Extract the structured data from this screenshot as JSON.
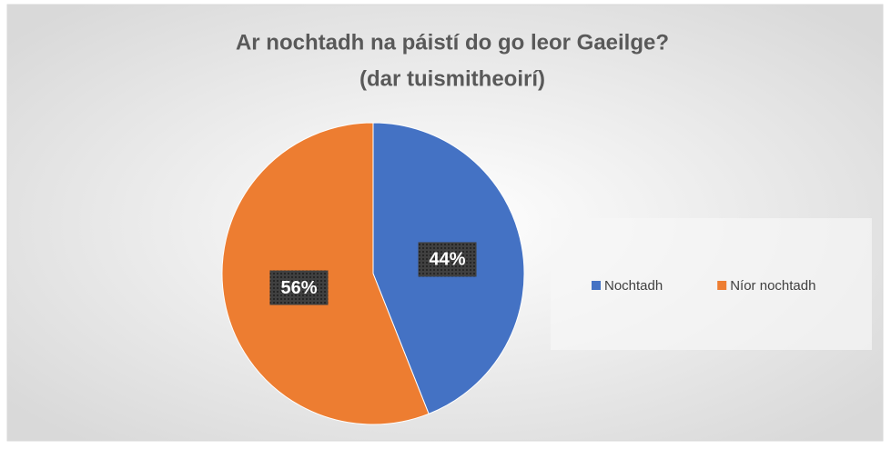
{
  "chart_data": {
    "type": "pie",
    "title": "Ar nochtadh na páistí do go leor Gaeilge?",
    "subtitle": "(dar tuismitheoirí)",
    "categories": [
      "Nochtadh",
      "Níor nochtadh"
    ],
    "values": [
      44,
      56
    ],
    "value_labels": [
      "44%",
      "56%"
    ],
    "colors": [
      "#4472c4",
      "#ed7d31"
    ],
    "legend": "right"
  }
}
